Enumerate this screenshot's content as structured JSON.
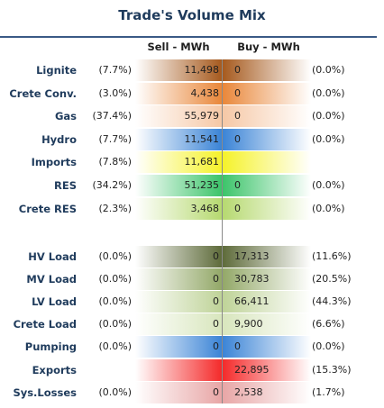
{
  "title": "Trade's Volume Mix",
  "headers": {
    "sell": "Sell - MWh",
    "buy": "Buy - MWh"
  },
  "chart_data": {
    "type": "bar",
    "title": "Trade's Volume Mix",
    "series": [
      {
        "name": "Sell - MWh",
        "values": [
          11498,
          4438,
          55979,
          11541,
          11681,
          51235,
          3468,
          0,
          0,
          0,
          0,
          0,
          null,
          0
        ]
      },
      {
        "name": "Buy - MWh",
        "values": [
          0,
          0,
          0,
          0,
          null,
          0,
          0,
          17313,
          30783,
          66411,
          9900,
          0,
          22895,
          2538
        ]
      }
    ],
    "categories": [
      "Lignite",
      "Crete Conv.",
      "Gas",
      "Hydro",
      "Imports",
      "RES",
      "Crete RES",
      "HV Load",
      "MV Load",
      "LV Load",
      "Crete Load",
      "Pumping",
      "Exports",
      "Sys.Losses"
    ],
    "rows": [
      {
        "label": "Lignite",
        "sell_pct": "(7.7%)",
        "sell": "11,498",
        "sell_value": 11498,
        "buy": "0",
        "buy_value": 0,
        "buy_pct": "(0.0%)",
        "sell_color": "#a65a1e",
        "buy_color": "#a65a1e"
      },
      {
        "label": "Crete Conv.",
        "sell_pct": "(3.0%)",
        "sell": "4,438",
        "sell_value": 4438,
        "buy": "0",
        "buy_value": 0,
        "buy_pct": "(0.0%)",
        "sell_color": "#e9873a",
        "buy_color": "#e9873a"
      },
      {
        "label": "Gas",
        "sell_pct": "(37.4%)",
        "sell": "55,979",
        "sell_value": 55979,
        "buy": "0",
        "buy_value": 0,
        "buy_pct": "(0.0%)",
        "sell_color": "#f6c8a6",
        "buy_color": "#f6c8a6"
      },
      {
        "label": "Hydro",
        "sell_pct": "(7.7%)",
        "sell": "11,541",
        "sell_value": 11541,
        "buy": "0",
        "buy_value": 0,
        "buy_pct": "(0.0%)",
        "sell_color": "#3b84d6",
        "buy_color": "#3b84d6"
      },
      {
        "label": "Imports",
        "sell_pct": "(7.8%)",
        "sell": "11,681",
        "sell_value": 11681,
        "buy": "",
        "buy_value": null,
        "buy_pct": "",
        "sell_color": "#f5f22a",
        "buy_color": "#f5f22a"
      },
      {
        "label": "RES",
        "sell_pct": "(34.2%)",
        "sell": "51,235",
        "sell_value": 51235,
        "buy": "0",
        "buy_value": 0,
        "buy_pct": "(0.0%)",
        "sell_color": "#3cc46a",
        "buy_color": "#3cc46a"
      },
      {
        "label": "Crete RES",
        "sell_pct": "(2.3%)",
        "sell": "3,468",
        "sell_value": 3468,
        "buy": "0",
        "buy_value": 0,
        "buy_pct": "(0.0%)",
        "sell_color": "#b6d970",
        "buy_color": "#b6d970"
      },
      {
        "label": "HV Load",
        "sell_pct": "(0.0%)",
        "sell": "0",
        "sell_value": 0,
        "buy": "17,313",
        "buy_value": 17313,
        "buy_pct": "(11.6%)",
        "sell_color": "#5e6b3a",
        "buy_color": "#5e6b3a"
      },
      {
        "label": "MV Load",
        "sell_pct": "(0.0%)",
        "sell": "0",
        "sell_value": 0,
        "buy": "30,783",
        "buy_value": 30783,
        "buy_pct": "(20.5%)",
        "sell_color": "#93a868",
        "buy_color": "#93a868"
      },
      {
        "label": "LV Load",
        "sell_pct": "(0.0%)",
        "sell": "0",
        "sell_value": 0,
        "buy": "66,411",
        "buy_value": 66411,
        "buy_pct": "(44.3%)",
        "sell_color": "#bfd398",
        "buy_color": "#bfd398"
      },
      {
        "label": "Crete Load",
        "sell_pct": "(0.0%)",
        "sell": "0",
        "sell_value": 0,
        "buy": "9,900",
        "buy_value": 9900,
        "buy_pct": "(6.6%)",
        "sell_color": "#d8e6bd",
        "buy_color": "#d8e6bd"
      },
      {
        "label": "Pumping",
        "sell_pct": "(0.0%)",
        "sell": "0",
        "sell_value": 0,
        "buy": "0",
        "buy_value": 0,
        "buy_pct": "(0.0%)",
        "sell_color": "#3b84d6",
        "buy_color": "#3b84d6"
      },
      {
        "label": "Exports",
        "sell_pct": "",
        "sell": "",
        "sell_value": null,
        "buy": "22,895",
        "buy_value": 22895,
        "buy_pct": "(15.3%)",
        "sell_color": "#f42a2a",
        "buy_color": "#f42a2a"
      },
      {
        "label": "Sys.Losses",
        "sell_pct": "(0.0%)",
        "sell": "0",
        "sell_value": 0,
        "buy": "2,538",
        "buy_value": 2538,
        "buy_pct": "(1.7%)",
        "sell_color": "#e8a6a6",
        "buy_color": "#e8a6a6"
      }
    ]
  }
}
